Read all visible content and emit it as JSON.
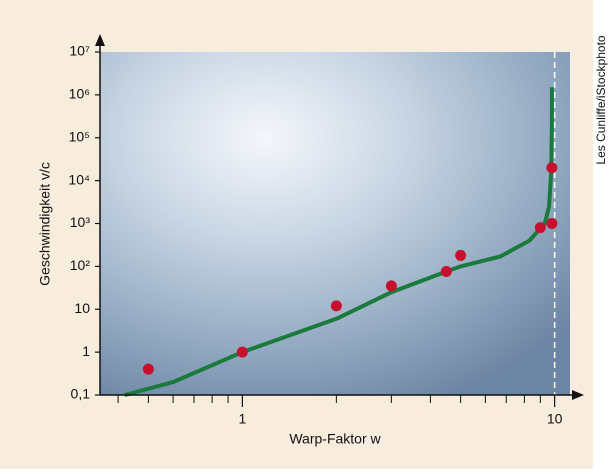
{
  "chart_data": {
    "type": "scatter",
    "x_label": "Warp-Faktor w",
    "y_label": "Geschwindigkeit v/c",
    "credit": "Les Cunliffe/iStockphoto",
    "xscale": "log",
    "yscale": "log",
    "xlim": [
      0.35,
      11.2
    ],
    "ylim": [
      0.1,
      10000000
    ],
    "xticks": [
      1,
      10
    ],
    "x_minor_ticks": [
      0.4,
      0.5,
      0.6,
      0.7,
      0.8,
      0.9,
      2,
      3,
      4,
      5,
      6,
      7,
      8,
      9
    ],
    "yticks": [
      {
        "value": 0.1,
        "label": "0,1"
      },
      1,
      10,
      {
        "value": 100,
        "label": "10²"
      },
      {
        "value": 1000,
        "label": "10³"
      },
      {
        "value": 10000,
        "label": "10⁴"
      },
      {
        "value": 100000,
        "label": "10⁵"
      },
      {
        "value": 1000000,
        "label": "10⁶"
      },
      {
        "value": 10000000,
        "label": "10⁷"
      }
    ],
    "asymptote_x": 10,
    "series": [
      {
        "type": "scatter",
        "color": "#c8102e",
        "x": [
          0.5,
          1,
          2,
          3,
          4.5,
          5,
          9,
          9.8,
          9.8
        ],
        "values": [
          0.4,
          1,
          12,
          35,
          76,
          180,
          800,
          1000,
          20000
        ]
      },
      {
        "type": "line",
        "color": "#1a7a3c",
        "x": [
          0.42,
          0.6,
          1,
          2,
          3,
          4.5,
          5,
          6.7,
          8.3,
          9.3,
          9.6,
          9.75,
          9.8,
          9.8
        ],
        "values": [
          0.1,
          0.2,
          1,
          6,
          25,
          76,
          100,
          170,
          400,
          1000,
          2500,
          16000,
          200000,
          1500000
        ]
      }
    ]
  }
}
